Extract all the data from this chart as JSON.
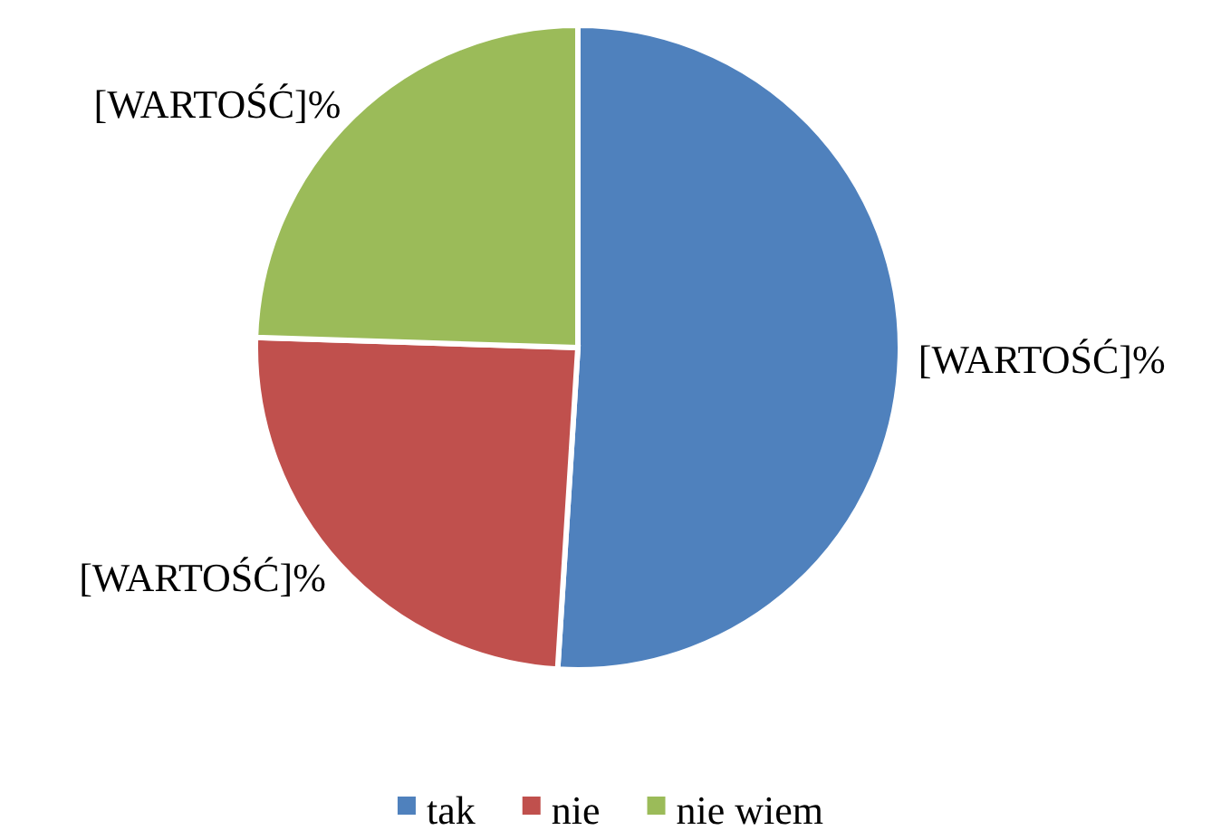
{
  "chart_data": {
    "type": "pie",
    "categories": [
      "tak",
      "nie",
      "nie wiem"
    ],
    "values": [
      51,
      24.5,
      24.5
    ],
    "colors": [
      "#4f81bd",
      "#c0504d",
      "#9bbb59"
    ],
    "value_labels": [
      "[WARTOŚĆ]%",
      "[WARTOŚĆ]%",
      "[WARTOŚĆ]%"
    ],
    "legend": "bottom"
  }
}
